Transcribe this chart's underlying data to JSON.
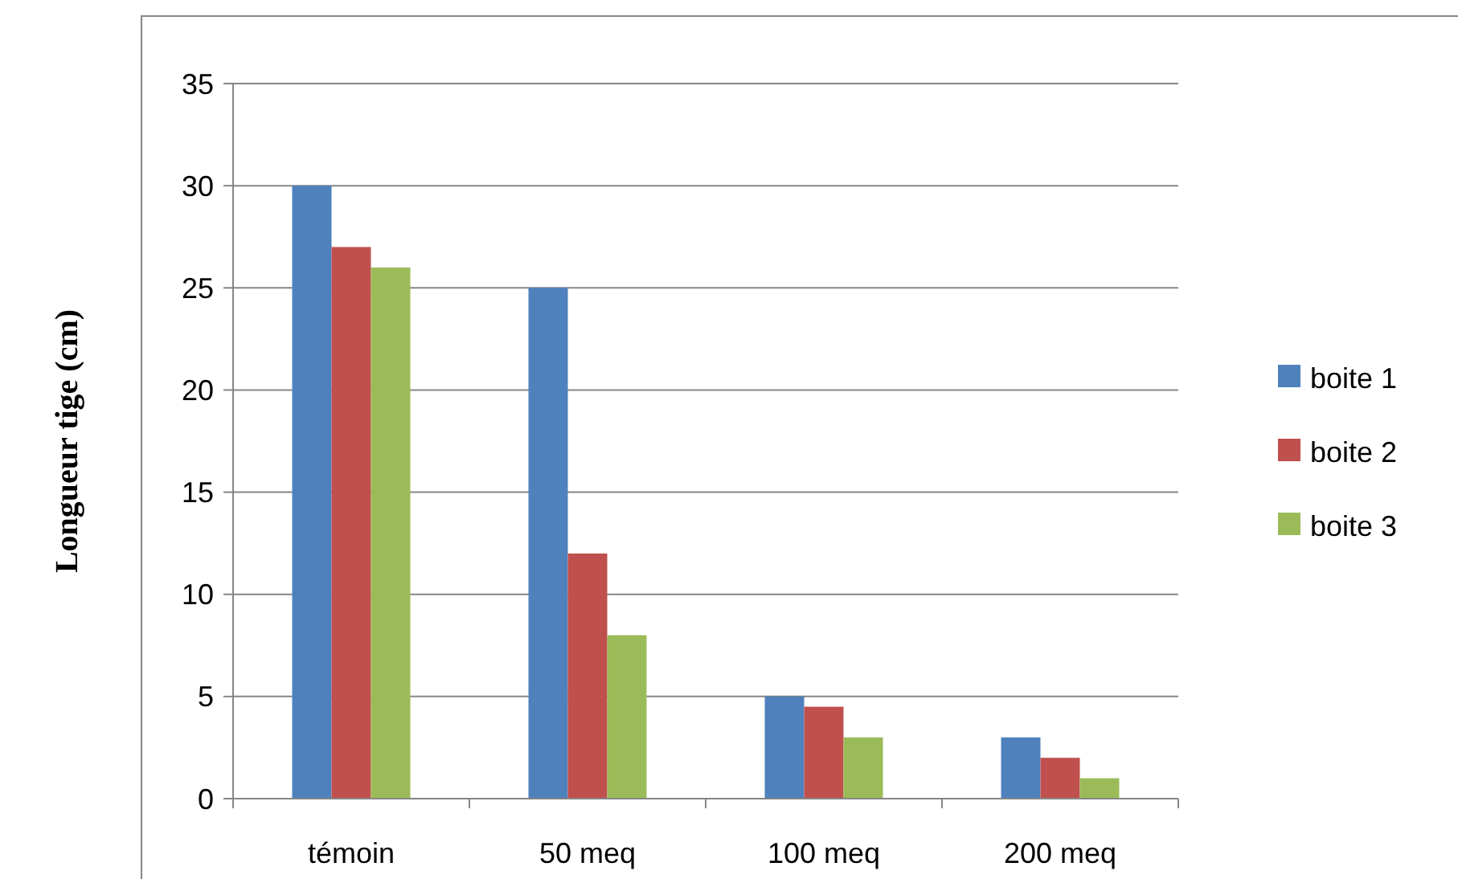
{
  "chart_data": {
    "type": "bar",
    "ylabel": "Longueur tige (cm)",
    "categories": [
      "témoin",
      "50 meq",
      "100 meq",
      "200 meq"
    ],
    "series": [
      {
        "name": "boite 1",
        "color": "#4f81bd",
        "values": [
          30,
          25,
          5,
          3
        ]
      },
      {
        "name": "boite 2",
        "color": "#c0504d",
        "values": [
          27,
          12,
          4.5,
          2
        ]
      },
      {
        "name": "boite 3",
        "color": "#9bbb59",
        "values": [
          26,
          8,
          3,
          1
        ]
      }
    ],
    "ylim": [
      0,
      35
    ],
    "yticks": [
      0,
      5,
      10,
      15,
      20,
      25,
      30,
      35
    ],
    "grid": "y",
    "legend": "right"
  }
}
